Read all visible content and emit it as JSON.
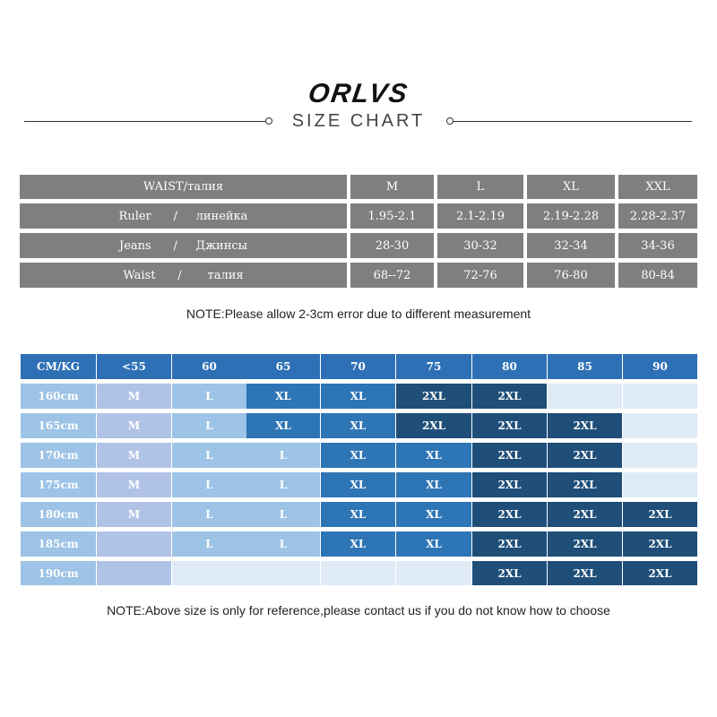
{
  "header": {
    "brand": "ORLVS",
    "title": "SIZE CHART"
  },
  "size_table": {
    "columns": [
      "WAIST/талия",
      "M",
      "L",
      "XL",
      "XXL"
    ],
    "rows": [
      {
        "label": "Ruler      /     линейка",
        "values": [
          "1.95-2.1",
          "2.1-2.19",
          "2.19-2.28",
          "2.28-2.37"
        ]
      },
      {
        "label": "Jeans      /     Джинсы",
        "values": [
          "28-30",
          "30-32",
          "32-34",
          "34-36"
        ]
      },
      {
        "label": "Waist      /       талия",
        "values": [
          "68--72",
          "72-76",
          "76-80",
          "80-84"
        ]
      }
    ]
  },
  "note1": "NOTE:Please allow 2-3cm error due to different measurement",
  "fit_table": {
    "corner": "CM/KG",
    "weights": [
      "<55",
      "60",
      "65",
      "70",
      "75",
      "80",
      "85",
      "90"
    ],
    "rows": [
      {
        "height": "160cm",
        "sizes": [
          "M",
          "L",
          "XL",
          "XL",
          "2XL",
          "2XL",
          "",
          ""
        ]
      },
      {
        "height": "165cm",
        "sizes": [
          "M",
          "L",
          "XL",
          "XL",
          "2XL",
          "2XL",
          "2XL",
          ""
        ]
      },
      {
        "height": "170cm",
        "sizes": [
          "M",
          "L",
          "L",
          "XL",
          "XL",
          "2XL",
          "2XL",
          ""
        ]
      },
      {
        "height": "175cm",
        "sizes": [
          "M",
          "L",
          "L",
          "XL",
          "XL",
          "2XL",
          "2XL",
          ""
        ]
      },
      {
        "height": "180cm",
        "sizes": [
          "M",
          "L",
          "L",
          "XL",
          "XL",
          "2XL",
          "2XL",
          "2XL"
        ]
      },
      {
        "height": "185cm",
        "sizes": [
          "",
          "L",
          "L",
          "XL",
          "XL",
          "2XL",
          "2XL",
          "2XL"
        ]
      },
      {
        "height": "190cm",
        "sizes": [
          "",
          "",
          "",
          "",
          "",
          "2XL",
          "2XL",
          "2XL"
        ]
      }
    ],
    "colors": {
      "header": "#2e70b5",
      "M": "#b0c3e6",
      "L": "#9dc3e6",
      "XL": "#2e75b6",
      "2XL": "#1f4e79",
      "empty": "#deebf7"
    }
  },
  "note2": "NOTE:Above size is only for reference,please contact us if you do not know how to choose"
}
